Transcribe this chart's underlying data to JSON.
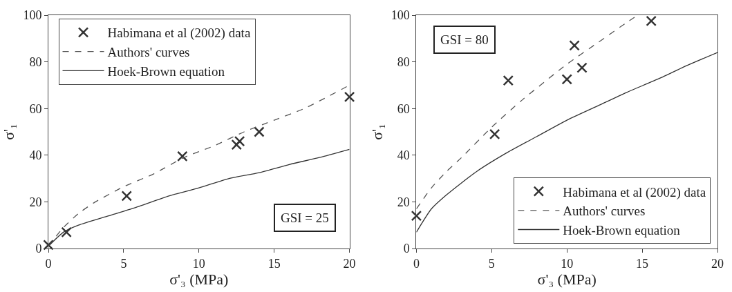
{
  "chart_data": [
    {
      "type": "line",
      "xlabel": "σ'₃ (MPa)",
      "ylabel": "σ'₁",
      "xlim": [
        0,
        20
      ],
      "xticks": [
        0,
        5,
        10,
        15,
        20
      ],
      "ylim": [
        0,
        100
      ],
      "yticks": [
        0,
        20,
        40,
        60,
        80,
        100
      ],
      "grid": false,
      "legend": "top left",
      "annotations": [
        "GSI = 25"
      ],
      "series": [
        {
          "name": "Habimana et al (2002) data",
          "type": "scatter",
          "marker": "cross",
          "color": "#333333",
          "x": [
            0,
            1.2,
            5.2,
            8.9,
            12.5,
            12.7,
            14,
            20
          ],
          "values": [
            1.5,
            7,
            22.5,
            39.5,
            44.5,
            46,
            50,
            65
          ]
        },
        {
          "name": "Authors' curves",
          "line_style": "dashed",
          "color": "#555555",
          "x": [
            0,
            1,
            2,
            3,
            5,
            7,
            9,
            11,
            13,
            15,
            17,
            20
          ],
          "values": [
            1,
            9,
            15,
            19.5,
            26.5,
            32,
            39,
            44,
            50,
            55,
            60,
            70
          ]
        },
        {
          "name": "Hoek-Brown equation",
          "line_style": "solid",
          "color": "#333333",
          "x": [
            0,
            1,
            2,
            4,
            6,
            8,
            10,
            12,
            14,
            16,
            18,
            20
          ],
          "values": [
            1,
            7,
            10,
            14,
            18,
            22.5,
            26,
            30,
            32.5,
            36,
            39,
            42.5
          ]
        }
      ]
    },
    {
      "type": "line",
      "xlabel": "σ'₃ (MPa)",
      "ylabel": "σ'₁",
      "xlim": [
        0,
        20
      ],
      "xticks": [
        0,
        5,
        10,
        15,
        20
      ],
      "ylim": [
        0,
        100
      ],
      "yticks": [
        0,
        20,
        40,
        60,
        80,
        100
      ],
      "grid": false,
      "legend": "bottom right",
      "annotations": [
        "GSI = 80"
      ],
      "series": [
        {
          "name": "Habimana et al (2002) data",
          "type": "scatter",
          "marker": "cross",
          "color": "#333333",
          "x": [
            0,
            5.2,
            6.1,
            10,
            10.5,
            11,
            15.6
          ],
          "values": [
            14,
            49,
            72,
            72.5,
            87,
            77.5,
            97.5
          ]
        },
        {
          "name": "Authors' curves",
          "line_style": "dashed",
          "color": "#555555",
          "x": [
            0,
            1,
            2,
            3,
            5,
            7,
            10,
            12,
            14,
            14.7
          ],
          "values": [
            17,
            26,
            33,
            39,
            52,
            63.5,
            79,
            88,
            97,
            100
          ]
        },
        {
          "name": "Hoek-Brown equation",
          "line_style": "solid",
          "color": "#333333",
          "x": [
            0,
            1,
            2,
            4,
            6,
            8,
            10,
            12,
            14,
            16,
            18,
            20
          ],
          "values": [
            7,
            17,
            23,
            33,
            41,
            48,
            55,
            61,
            67,
            72.5,
            78.5,
            84
          ]
        }
      ]
    }
  ]
}
